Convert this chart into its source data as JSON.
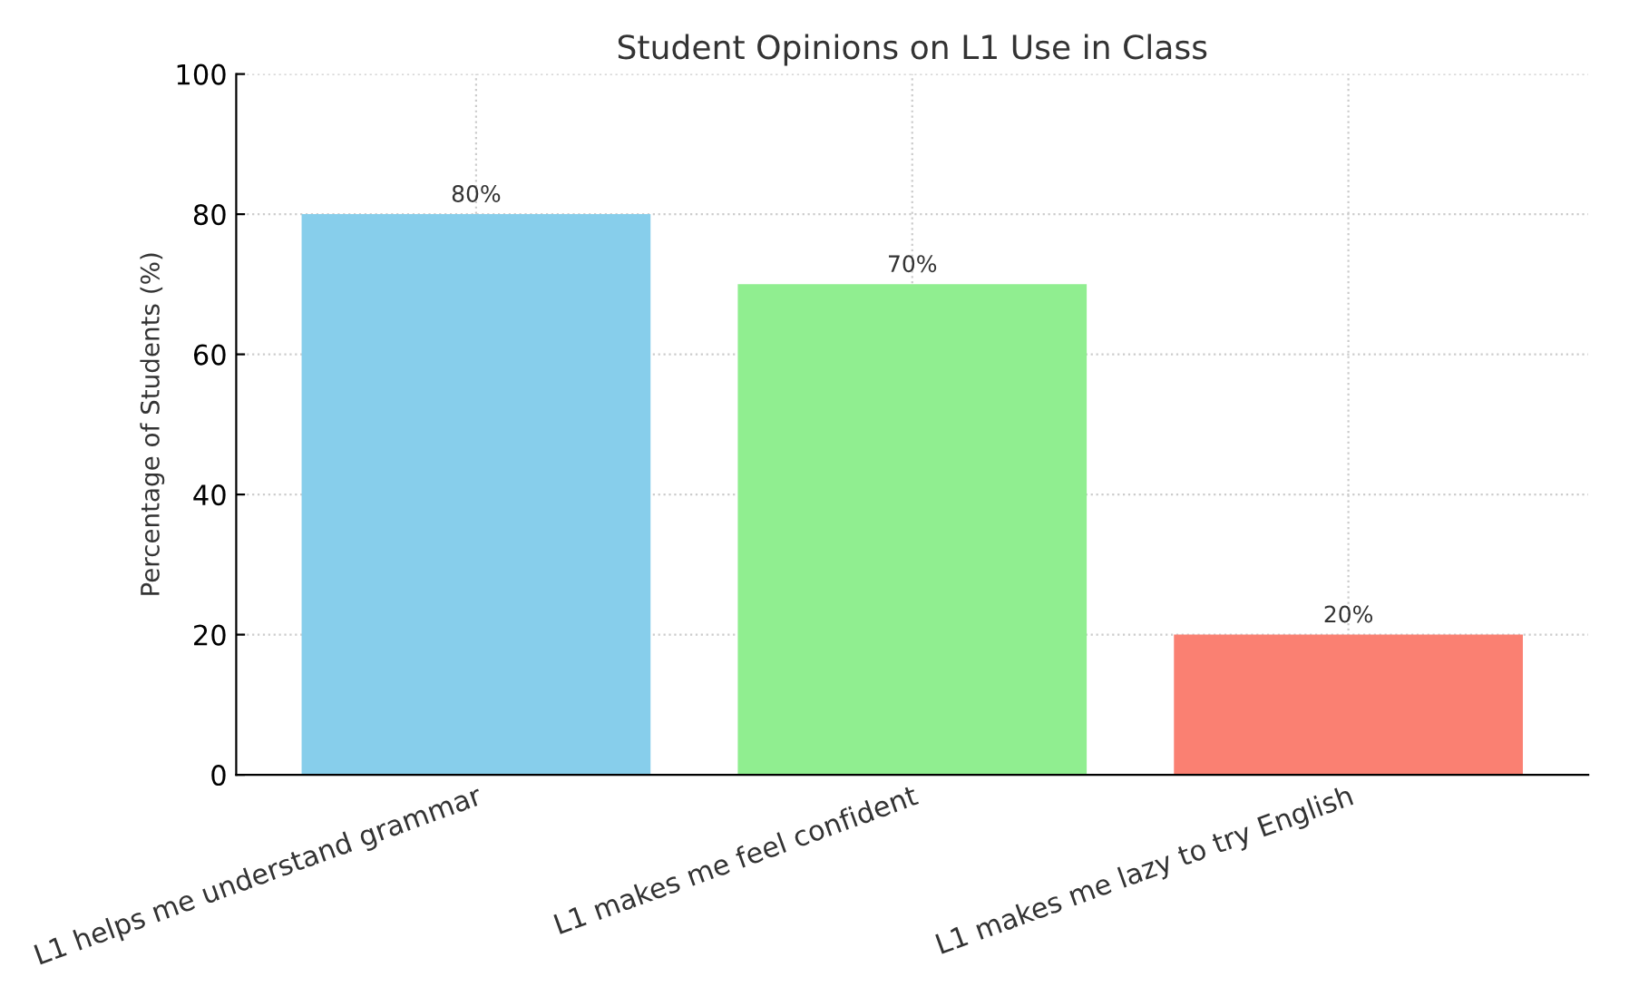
{
  "chart_data": {
    "type": "bar",
    "title": "Student Opinions on L1 Use in Class",
    "ylabel": "Percentage of Students (%)",
    "categories": [
      "L1 helps me understand grammar",
      "L1 makes me feel confident",
      "L1 makes me lazy to try English"
    ],
    "values": [
      80,
      70,
      20
    ],
    "colors": [
      "#87ceeb",
      "#90ee90",
      "#fa8072"
    ],
    "value_labels": [
      "80%",
      "70%",
      "20%"
    ],
    "ylim": [
      0,
      100
    ],
    "yticks": [
      0,
      20,
      40,
      60,
      80,
      100
    ],
    "grid": true
  }
}
